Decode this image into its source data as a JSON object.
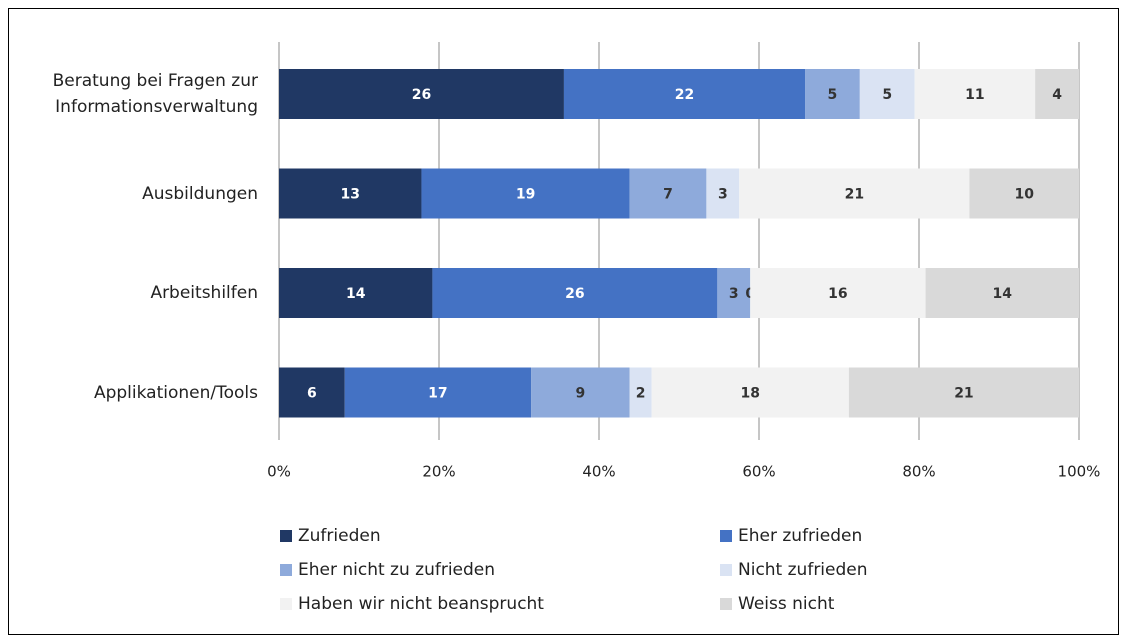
{
  "chart_data": {
    "type": "bar",
    "orientation": "horizontal",
    "stack": "percent",
    "categories": [
      "Beratung bei Fragen zur Informationsverwaltung",
      "Ausbildungen",
      "Arbeitshilfen",
      "Applikationen/Tools"
    ],
    "series": [
      {
        "name": "Zufrieden",
        "color": "#203864",
        "values": [
          26,
          13,
          14,
          6
        ]
      },
      {
        "name": "Eher zufrieden",
        "color": "#4472c4",
        "values": [
          22,
          19,
          26,
          17
        ]
      },
      {
        "name": "Eher nicht zu zufrieden",
        "color": "#8eaadb",
        "values": [
          5,
          7,
          3,
          9
        ]
      },
      {
        "name": "Nicht zufrieden",
        "color": "#dae3f3",
        "values": [
          5,
          3,
          0,
          2
        ]
      },
      {
        "name": "Haben wir nicht beansprucht",
        "color": "#f2f2f2",
        "values": [
          11,
          21,
          16,
          18
        ]
      },
      {
        "name": "Weiss nicht",
        "color": "#d9d9d9",
        "values": [
          4,
          10,
          14,
          21
        ]
      }
    ],
    "xlim": [
      0,
      100
    ],
    "xticks": [
      {
        "value": 0,
        "label": "0%"
      },
      {
        "value": 20,
        "label": "20%"
      },
      {
        "value": 40,
        "label": "40%"
      },
      {
        "value": 60,
        "label": "60%"
      },
      {
        "value": 80,
        "label": "80%"
      },
      {
        "value": 100,
        "label": "100%"
      }
    ],
    "grid": true,
    "legend": "bottom"
  }
}
